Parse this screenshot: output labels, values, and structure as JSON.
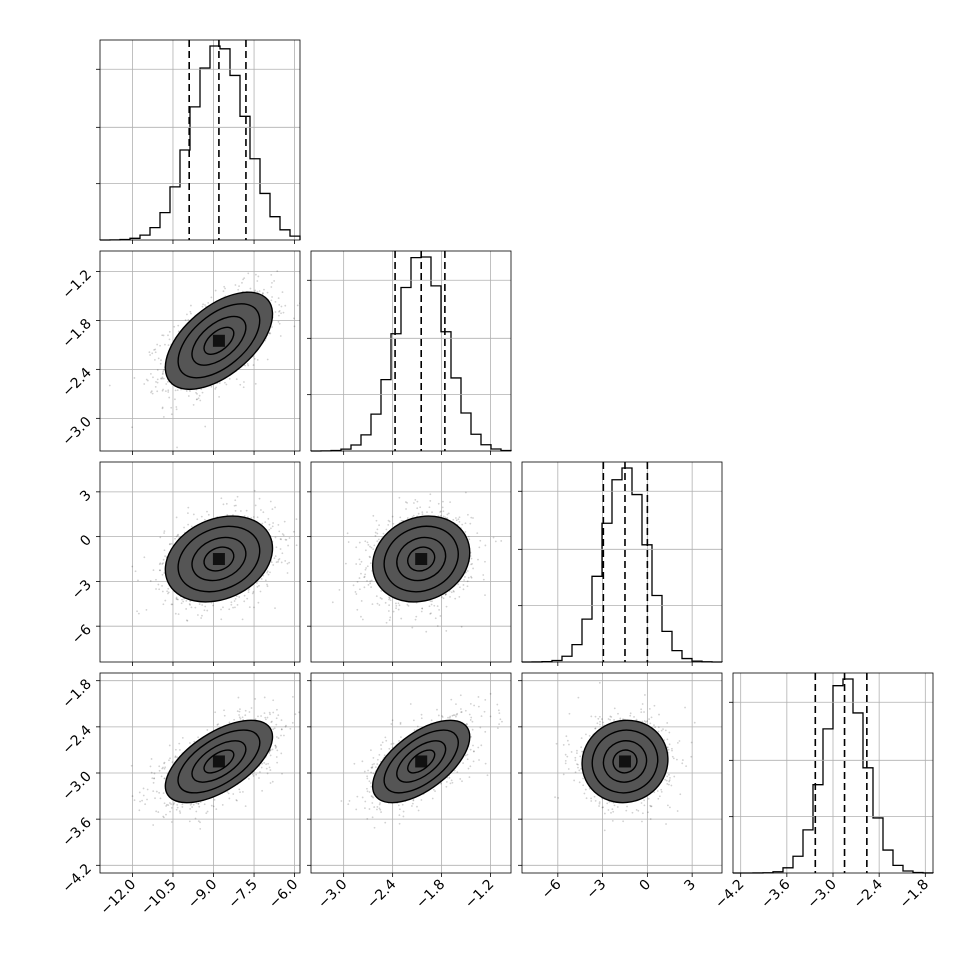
{
  "chart_data": {
    "type": "corner",
    "title": "",
    "parameters": [
      {
        "name": "",
        "mean": -8.8,
        "sd": 1.0,
        "range": [
          -13.2,
          -5.8
        ],
        "ticks": [
          -12.0,
          -10.5,
          -9.0,
          -7.5,
          -6.0
        ],
        "tick_labels": [
          "−12.0",
          "−10.5",
          "−9.0",
          "−7.5",
          "−6.0"
        ],
        "quantiles": [
          -9.9,
          -8.8,
          -7.8
        ]
      },
      {
        "name": "",
        "mean": -2.05,
        "sd": 0.3,
        "range": [
          -3.4,
          -0.95
        ],
        "ticks": [
          -3.0,
          -2.4,
          -1.8,
          -1.2
        ],
        "tick_labels": [
          "−3.0",
          "−2.4",
          "−1.8",
          "−1.2"
        ],
        "quantiles": [
          -2.37,
          -2.05,
          -1.76
        ]
      },
      {
        "name": "",
        "mean": -1.5,
        "sd": 1.45,
        "range": [
          -8.4,
          5.0
        ],
        "ticks": [
          -6,
          -3,
          0,
          3
        ],
        "tick_labels": [
          "−6",
          "−3",
          "0",
          "3"
        ],
        "quantiles": [
          -2.95,
          -1.5,
          0.0
        ]
      },
      {
        "name": "",
        "mean": -2.85,
        "sd": 0.27,
        "range": [
          -4.3,
          -1.7
        ],
        "ticks": [
          -4.2,
          -3.6,
          -3.0,
          -2.4,
          -1.8
        ],
        "tick_labels": [
          "−4.2",
          "−3.6",
          "−3.0",
          "−2.4",
          "−1.8"
        ],
        "quantiles": [
          -3.23,
          -2.85,
          -2.56
        ]
      }
    ],
    "correlations": {
      "1-0": 0.55,
      "2-0": 0.25,
      "2-1": 0.15,
      "3-0": 0.6,
      "3-1": 0.6,
      "3-2": 0.05
    },
    "histogram_bins": 20,
    "contour_levels": [
      0.12,
      0.39,
      0.68,
      0.86
    ],
    "grid": true,
    "legend": "none"
  }
}
